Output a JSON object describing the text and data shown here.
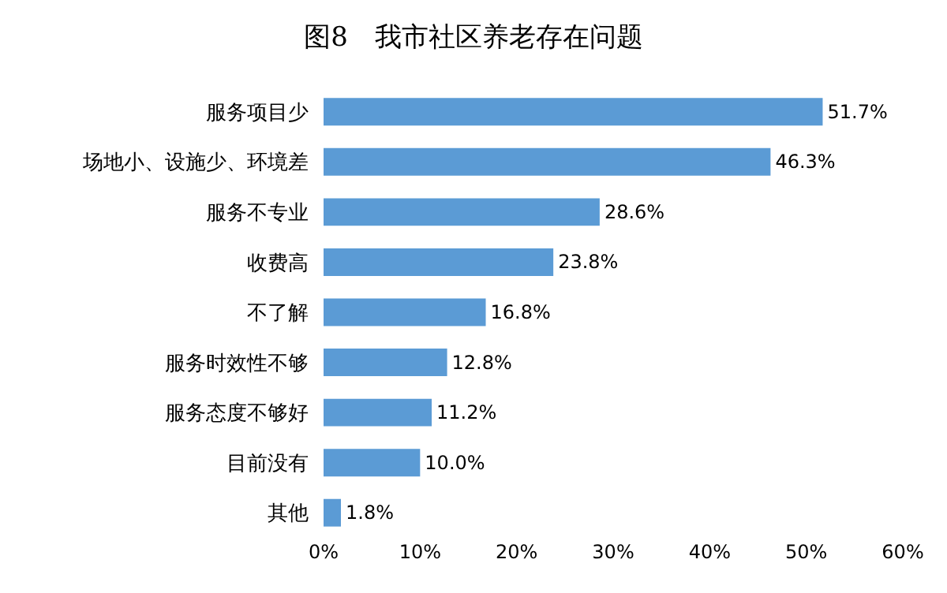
{
  "chart_data": {
    "type": "bar",
    "orientation": "horizontal",
    "title": "图8　我市社区养老存在问题",
    "categories": [
      "服务项目少",
      "场地小、设施少、环境差",
      "服务不专业",
      "收费高",
      "不了解",
      "服务时效性不够",
      "服务态度不够好",
      "目前没有",
      "其他"
    ],
    "values": [
      51.7,
      46.3,
      28.6,
      23.8,
      16.8,
      12.8,
      11.2,
      10.0,
      1.8
    ],
    "value_labels": [
      "51.7%",
      "46.3%",
      "28.6%",
      "23.8%",
      "16.8%",
      "12.8%",
      "11.2%",
      "10.0%",
      "1.8%"
    ],
    "color": "#5b9bd5",
    "xlim": [
      0,
      60
    ],
    "xticks": [
      {
        "value": 0,
        "label": "0%"
      },
      {
        "value": 10,
        "label": "10%"
      },
      {
        "value": 20,
        "label": "20%"
      },
      {
        "value": 30,
        "label": "30%"
      },
      {
        "value": 40,
        "label": "40%"
      },
      {
        "value": 50,
        "label": "50%"
      },
      {
        "value": 60,
        "label": "60%"
      }
    ]
  }
}
